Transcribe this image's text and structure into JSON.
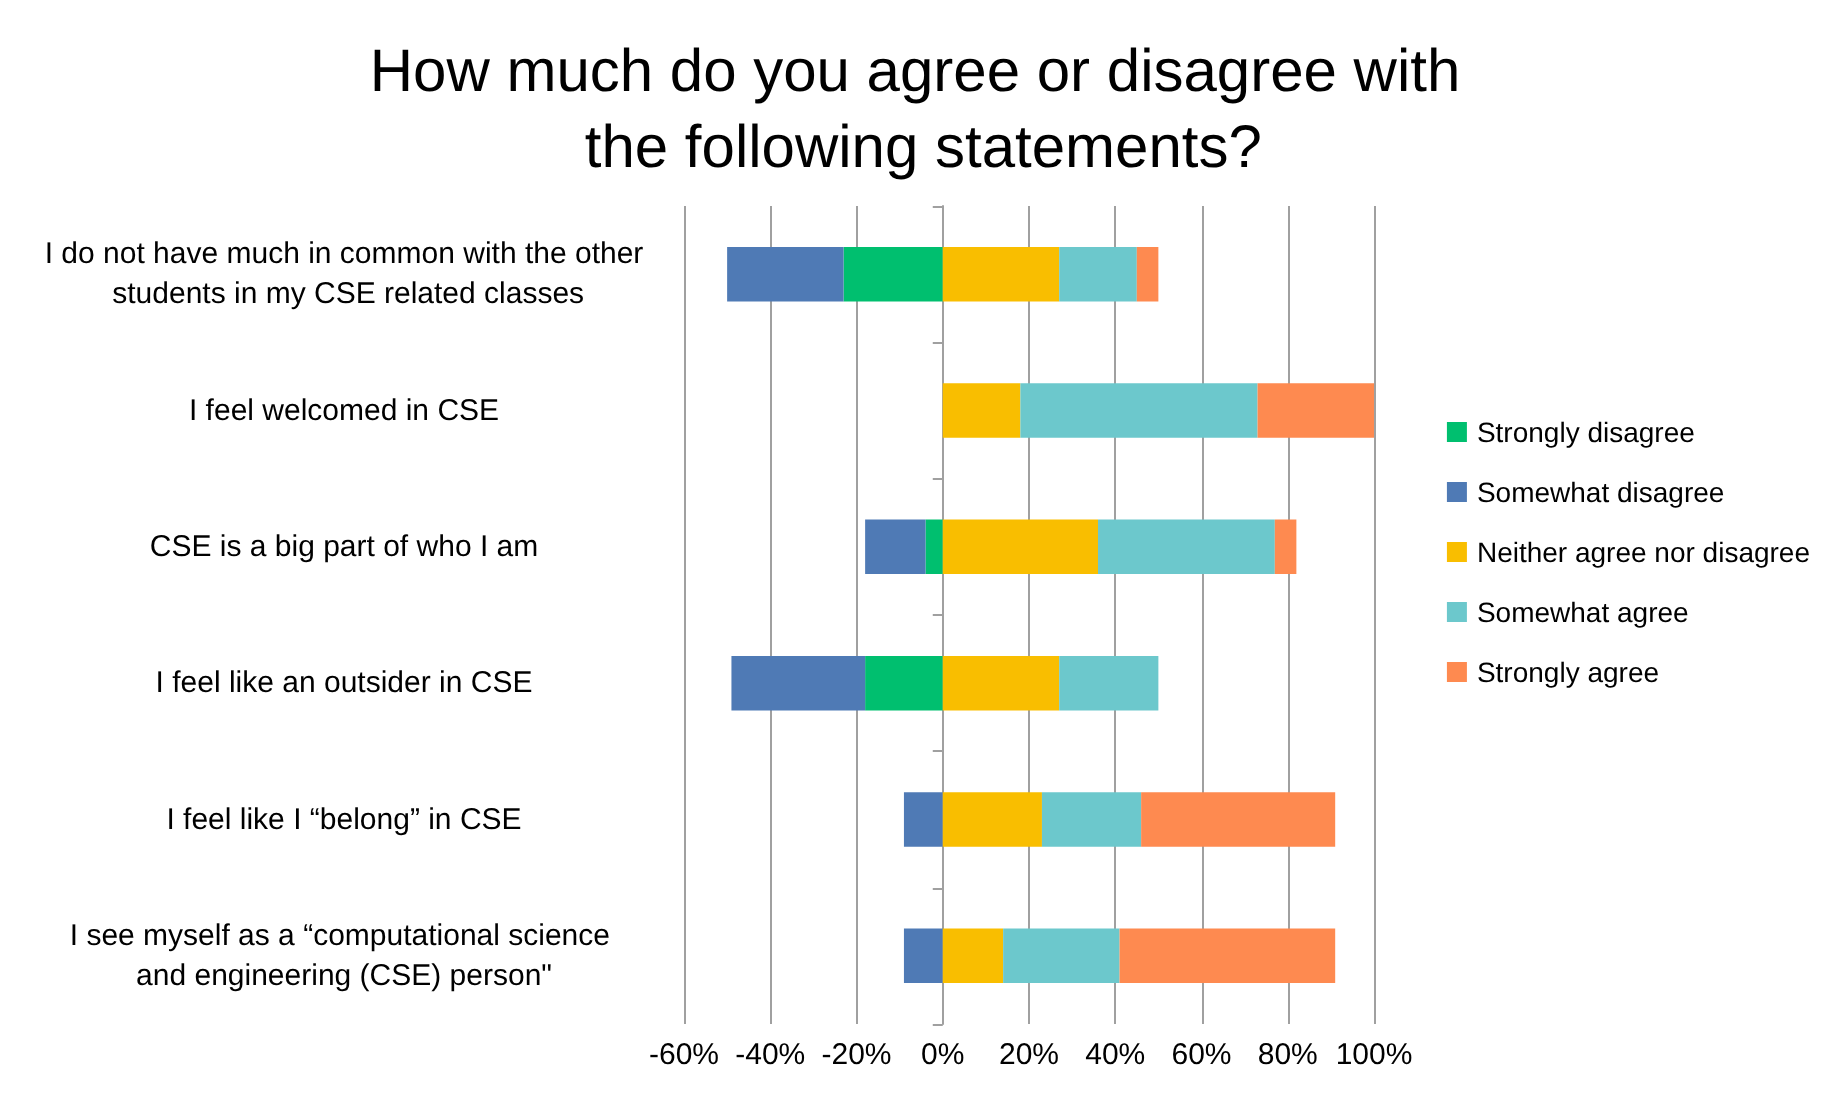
{
  "chart_data": {
    "type": "bar",
    "orientation": "horizontal",
    "stacked": true,
    "title": "How much do you agree or disagree with the following statements?",
    "categories": [
      "I do not have much in common with the other students in my CSE related classes",
      "I feel welcomed in CSE",
      "CSE is a big part of who I am",
      "I feel like an outsider in CSE",
      "I feel like I “belong” in CSE",
      "I see myself as a “computational science and engineering (CSE) person\""
    ],
    "series": [
      {
        "name": "Strongly disagree",
        "color": "#00bf6f",
        "values": [
          -23,
          null,
          -4,
          -18,
          null,
          null
        ]
      },
      {
        "name": "Somewhat disagree",
        "color": "#4f7ab5",
        "values": [
          -27,
          null,
          -14,
          -31,
          -9,
          -9
        ]
      },
      {
        "name": "Neither agree nor disagree",
        "color": "#f9be00",
        "values": [
          27,
          18,
          36,
          27,
          23,
          14
        ]
      },
      {
        "name": "Somewhat agree",
        "color": "#6cc8cc",
        "values": [
          18,
          55,
          41,
          23,
          23,
          27
        ]
      },
      {
        "name": "Strongly agree",
        "color": "#fe8a50",
        "values": [
          5,
          27,
          5,
          null,
          45,
          50
        ]
      }
    ],
    "xlim": [
      -60,
      100
    ],
    "xticks": [
      {
        "value": -60,
        "label": "-60%"
      },
      {
        "value": -40,
        "label": "-40%"
      },
      {
        "value": -20,
        "label": "-20%"
      },
      {
        "value": 0,
        "label": "0%"
      },
      {
        "value": 20,
        "label": "20%"
      },
      {
        "value": 40,
        "label": "40%"
      },
      {
        "value": 60,
        "label": "60%"
      },
      {
        "value": 80,
        "label": "80%"
      },
      {
        "value": 100,
        "label": "100%"
      }
    ],
    "grid": "x",
    "legend": "right"
  }
}
